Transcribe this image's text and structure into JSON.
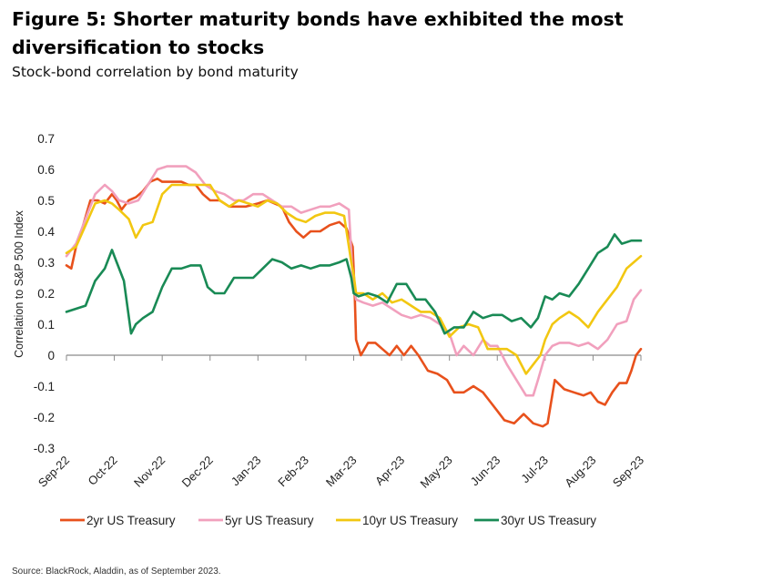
{
  "figure": {
    "title": "Figure 5: Shorter maturity bonds have exhibited the most diversification to stocks",
    "subtitle": "Stock-bond correlation by bond maturity",
    "source": "Source: BlackRock, Aladdin, as of September 2023."
  },
  "chart_data": {
    "type": "line",
    "title": "Figure 5: Shorter maturity bonds have exhibited the most diversification to stocks",
    "subtitle": "Stock-bond correlation by bond maturity",
    "ylabel": "Correlation to S&P 500 Index",
    "xlabel": "",
    "ylim": [
      -0.3,
      0.7
    ],
    "yticks": [
      0.7,
      0.6,
      0.5,
      0.4,
      0.3,
      0.2,
      0.1,
      0,
      -0.1,
      -0.2,
      -0.3
    ],
    "ytick_labels": [
      "0.7",
      "0.6",
      "0.5",
      "0.4",
      "0.3",
      "0.2",
      "0.1",
      "0",
      "-0.1",
      "-0.2",
      "-0.3"
    ],
    "xticks": [
      "Sep-22",
      "Oct-22",
      "Nov-22",
      "Dec-22",
      "Jan-23",
      "Feb-23",
      "Mar-23",
      "Apr-23",
      "May-23",
      "Jun-23",
      "Jul-23",
      "Aug-23",
      "Sep-23"
    ],
    "xlim": [
      0,
      12
    ],
    "grid": false,
    "legend_position": "bottom",
    "series": [
      {
        "name": "2yr US Treasury",
        "color": "#e8511c",
        "x": [
          0,
          0.1,
          0.2,
          0.35,
          0.5,
          0.65,
          0.8,
          0.95,
          1.05,
          1.15,
          1.3,
          1.45,
          1.6,
          1.75,
          1.9,
          2.0,
          2.2,
          2.4,
          2.55,
          2.7,
          2.85,
          3.0,
          3.2,
          3.4,
          3.55,
          3.75,
          4.0,
          4.2,
          4.35,
          4.5,
          4.65,
          4.8,
          4.95,
          5.1,
          5.3,
          5.5,
          5.7,
          5.85,
          5.98,
          6.02,
          6.05,
          6.15,
          6.3,
          6.45,
          6.6,
          6.75,
          6.9,
          7.05,
          7.2,
          7.35,
          7.55,
          7.75,
          7.95,
          8.1,
          8.3,
          8.5,
          8.7,
          8.85,
          9.0,
          9.15,
          9.35,
          9.55,
          9.75,
          9.95,
          10.05,
          10.2,
          10.4,
          10.6,
          10.8,
          10.95,
          11.1,
          11.25,
          11.4,
          11.55,
          11.7,
          11.8,
          11.9,
          12.0
        ],
        "values": [
          0.29,
          0.28,
          0.35,
          0.42,
          0.5,
          0.5,
          0.49,
          0.52,
          0.5,
          0.47,
          0.5,
          0.51,
          0.53,
          0.56,
          0.57,
          0.56,
          0.56,
          0.56,
          0.55,
          0.55,
          0.52,
          0.5,
          0.5,
          0.48,
          0.48,
          0.48,
          0.49,
          0.5,
          0.49,
          0.48,
          0.43,
          0.4,
          0.38,
          0.4,
          0.4,
          0.42,
          0.43,
          0.41,
          0.35,
          0.2,
          0.05,
          0.0,
          0.04,
          0.04,
          0.02,
          0.0,
          0.03,
          0.0,
          0.03,
          0.0,
          -0.05,
          -0.06,
          -0.08,
          -0.12,
          -0.12,
          -0.1,
          -0.12,
          -0.15,
          -0.18,
          -0.21,
          -0.22,
          -0.19,
          -0.22,
          -0.23,
          -0.22,
          -0.08,
          -0.11,
          -0.12,
          -0.13,
          -0.12,
          -0.15,
          -0.16,
          -0.12,
          -0.09,
          -0.09,
          -0.05,
          0.0,
          0.02
        ]
      },
      {
        "name": "5yr US Treasury",
        "color": "#f1a0bd",
        "x": [
          0,
          0.2,
          0.4,
          0.6,
          0.8,
          0.95,
          1.1,
          1.3,
          1.5,
          1.7,
          1.9,
          2.1,
          2.3,
          2.5,
          2.7,
          2.9,
          3.1,
          3.3,
          3.5,
          3.7,
          3.9,
          4.1,
          4.3,
          4.5,
          4.7,
          4.9,
          5.1,
          5.3,
          5.5,
          5.7,
          5.9,
          5.98,
          6.05,
          6.2,
          6.4,
          6.6,
          6.8,
          7.0,
          7.2,
          7.4,
          7.6,
          7.8,
          8.0,
          8.15,
          8.3,
          8.5,
          8.7,
          8.85,
          9.0,
          9.2,
          9.4,
          9.6,
          9.75,
          9.85,
          10.0,
          10.15,
          10.3,
          10.5,
          10.7,
          10.9,
          11.1,
          11.3,
          11.5,
          11.7,
          11.85,
          12.0
        ],
        "values": [
          0.32,
          0.36,
          0.44,
          0.52,
          0.55,
          0.53,
          0.5,
          0.49,
          0.5,
          0.55,
          0.6,
          0.61,
          0.61,
          0.61,
          0.59,
          0.55,
          0.53,
          0.52,
          0.5,
          0.5,
          0.52,
          0.52,
          0.5,
          0.48,
          0.48,
          0.46,
          0.47,
          0.48,
          0.48,
          0.49,
          0.47,
          0.25,
          0.18,
          0.17,
          0.16,
          0.17,
          0.15,
          0.13,
          0.12,
          0.13,
          0.12,
          0.1,
          0.07,
          0.0,
          0.03,
          0.0,
          0.05,
          0.03,
          0.03,
          -0.03,
          -0.08,
          -0.13,
          -0.13,
          -0.08,
          0.0,
          0.03,
          0.04,
          0.04,
          0.03,
          0.04,
          0.02,
          0.05,
          0.1,
          0.11,
          0.18,
          0.21
        ]
      },
      {
        "name": "10yr US Treasury",
        "color": "#f2c711",
        "x": [
          0,
          0.2,
          0.4,
          0.6,
          0.8,
          0.95,
          1.1,
          1.3,
          1.45,
          1.6,
          1.8,
          2.0,
          2.2,
          2.4,
          2.6,
          2.8,
          3.0,
          3.2,
          3.4,
          3.6,
          3.8,
          4.0,
          4.2,
          4.4,
          4.6,
          4.8,
          5.0,
          5.2,
          5.4,
          5.6,
          5.8,
          5.95,
          6.0,
          6.05,
          6.2,
          6.4,
          6.6,
          6.8,
          7.0,
          7.2,
          7.4,
          7.6,
          7.8,
          8.0,
          8.2,
          8.4,
          8.6,
          8.8,
          9.0,
          9.2,
          9.4,
          9.6,
          9.75,
          9.9,
          10.0,
          10.15,
          10.3,
          10.5,
          10.7,
          10.9,
          11.1,
          11.3,
          11.5,
          11.7,
          11.85,
          12.0
        ],
        "values": [
          0.33,
          0.35,
          0.42,
          0.49,
          0.5,
          0.49,
          0.47,
          0.44,
          0.38,
          0.42,
          0.43,
          0.52,
          0.55,
          0.55,
          0.55,
          0.55,
          0.55,
          0.5,
          0.48,
          0.5,
          0.49,
          0.48,
          0.5,
          0.49,
          0.46,
          0.44,
          0.43,
          0.45,
          0.46,
          0.46,
          0.45,
          0.3,
          0.26,
          0.2,
          0.2,
          0.18,
          0.2,
          0.17,
          0.18,
          0.16,
          0.14,
          0.14,
          0.12,
          0.06,
          0.09,
          0.1,
          0.09,
          0.02,
          0.02,
          0.02,
          0.0,
          -0.06,
          -0.03,
          0.0,
          0.05,
          0.1,
          0.12,
          0.14,
          0.12,
          0.09,
          0.14,
          0.18,
          0.22,
          0.28,
          0.3,
          0.32
        ]
      },
      {
        "name": "30yr US Treasury",
        "color": "#198a55",
        "x": [
          0,
          0.2,
          0.4,
          0.6,
          0.8,
          0.95,
          1.05,
          1.2,
          1.35,
          1.45,
          1.6,
          1.8,
          2.0,
          2.2,
          2.4,
          2.6,
          2.8,
          2.95,
          3.1,
          3.3,
          3.5,
          3.7,
          3.9,
          4.1,
          4.3,
          4.5,
          4.7,
          4.9,
          5.1,
          5.3,
          5.5,
          5.7,
          5.85,
          5.95,
          6.0,
          6.1,
          6.3,
          6.5,
          6.7,
          6.9,
          7.1,
          7.3,
          7.5,
          7.7,
          7.9,
          8.1,
          8.3,
          8.5,
          8.7,
          8.9,
          9.1,
          9.3,
          9.5,
          9.7,
          9.85,
          10.0,
          10.15,
          10.3,
          10.5,
          10.7,
          10.9,
          11.1,
          11.3,
          11.45,
          11.6,
          11.8,
          12.0
        ],
        "values": [
          0.14,
          0.15,
          0.16,
          0.24,
          0.28,
          0.34,
          0.3,
          0.24,
          0.07,
          0.1,
          0.12,
          0.14,
          0.22,
          0.28,
          0.28,
          0.29,
          0.29,
          0.22,
          0.2,
          0.2,
          0.25,
          0.25,
          0.25,
          0.28,
          0.31,
          0.3,
          0.28,
          0.29,
          0.28,
          0.29,
          0.29,
          0.3,
          0.31,
          0.25,
          0.2,
          0.19,
          0.2,
          0.19,
          0.17,
          0.23,
          0.23,
          0.18,
          0.18,
          0.14,
          0.07,
          0.09,
          0.09,
          0.14,
          0.12,
          0.13,
          0.13,
          0.11,
          0.12,
          0.09,
          0.12,
          0.19,
          0.18,
          0.2,
          0.19,
          0.23,
          0.28,
          0.33,
          0.35,
          0.39,
          0.36,
          0.37,
          0.37
        ]
      }
    ]
  }
}
